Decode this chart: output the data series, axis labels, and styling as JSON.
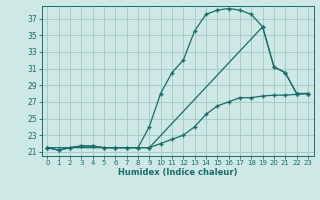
{
  "xlabel": "Humidex (Indice chaleur)",
  "bg_color": "#cde8e5",
  "grid_color": "#a8ccca",
  "line_color": "#1a6b6b",
  "xlim": [
    -0.5,
    23.5
  ],
  "ylim": [
    20.5,
    38.5
  ],
  "yticks": [
    21,
    23,
    25,
    27,
    29,
    31,
    33,
    35,
    37
  ],
  "xticks": [
    0,
    1,
    2,
    3,
    4,
    5,
    6,
    7,
    8,
    9,
    10,
    11,
    12,
    13,
    14,
    15,
    16,
    17,
    18,
    19,
    20,
    21,
    22,
    23
  ],
  "series1_x": [
    0,
    1,
    2,
    3,
    4,
    5,
    6,
    7,
    8,
    9,
    10,
    11,
    12,
    13,
    14,
    15,
    16,
    17,
    18,
    19,
    20,
    21,
    22,
    23
  ],
  "series1_y": [
    21.5,
    21.2,
    21.5,
    21.7,
    21.7,
    21.5,
    21.5,
    21.5,
    21.5,
    24.0,
    28.0,
    30.5,
    32.0,
    35.5,
    37.5,
    38.0,
    38.2,
    38.0,
    37.5,
    36.0,
    31.2,
    30.5,
    28.0,
    28.0
  ],
  "series2_x": [
    0,
    1,
    2,
    3,
    4,
    5,
    6,
    7,
    8,
    9,
    10,
    11,
    12,
    13,
    14,
    15,
    16,
    17,
    18,
    19,
    20,
    21,
    22,
    23
  ],
  "series2_y": [
    21.5,
    21.2,
    21.5,
    21.7,
    21.7,
    21.5,
    21.5,
    21.5,
    21.5,
    21.5,
    22.0,
    22.5,
    23.0,
    24.0,
    25.5,
    26.5,
    27.0,
    27.5,
    27.5,
    27.7,
    27.8,
    27.8,
    27.9,
    28.0
  ],
  "series3_x": [
    0,
    9,
    19,
    20,
    21,
    22,
    23
  ],
  "series3_y": [
    21.5,
    21.5,
    36.0,
    31.2,
    30.5,
    28.0,
    28.0
  ]
}
